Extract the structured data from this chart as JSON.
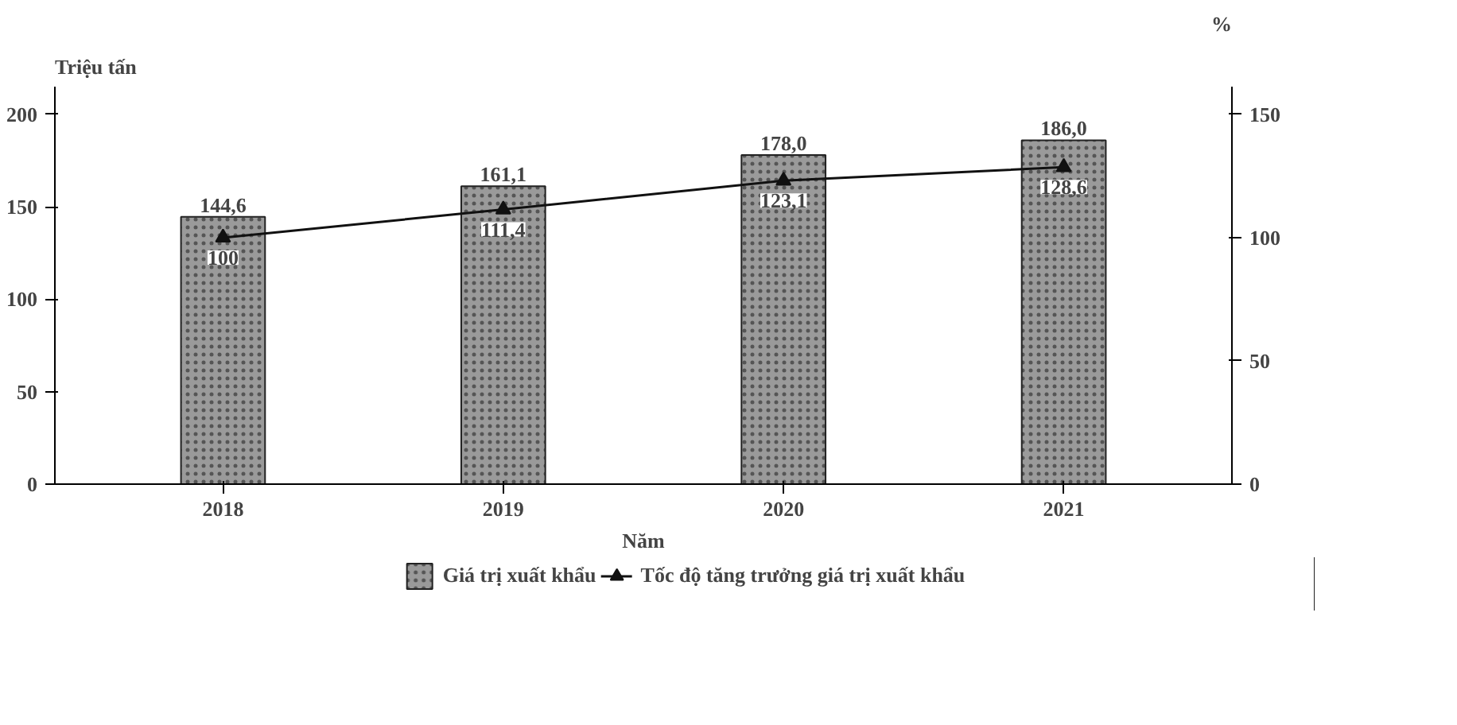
{
  "chart_data": {
    "type": "bar",
    "xlabel": "Năm",
    "ylabel": "Triệu tấn",
    "y2label": "%",
    "categories": [
      "2018",
      "2019",
      "2020",
      "2021"
    ],
    "series": [
      {
        "name": "Giá trị xuất khẩu",
        "color": "#9a9a9a",
        "values": [
          144.6,
          161.1,
          178.0,
          186.0
        ],
        "value_labels": [
          "144,6",
          "161,1",
          "178,0",
          "186,0"
        ]
      },
      {
        "name": "Tốc độ tăng trưởng giá trị xuất khẩu",
        "type": "line",
        "axis": "y2",
        "color": "#111111",
        "marker": "triangle",
        "values": [
          100,
          111.4,
          123.1,
          128.6
        ],
        "value_labels": [
          "100",
          "111,4",
          "123,1",
          "128,6"
        ]
      }
    ],
    "ylim": [
      0,
      215
    ],
    "yticks": [
      0,
      50,
      100,
      150,
      200
    ],
    "y2lim": [
      0,
      161.25
    ],
    "y2ticks": [
      0,
      50,
      100,
      150
    ],
    "grid": false,
    "legend": "bottom"
  }
}
